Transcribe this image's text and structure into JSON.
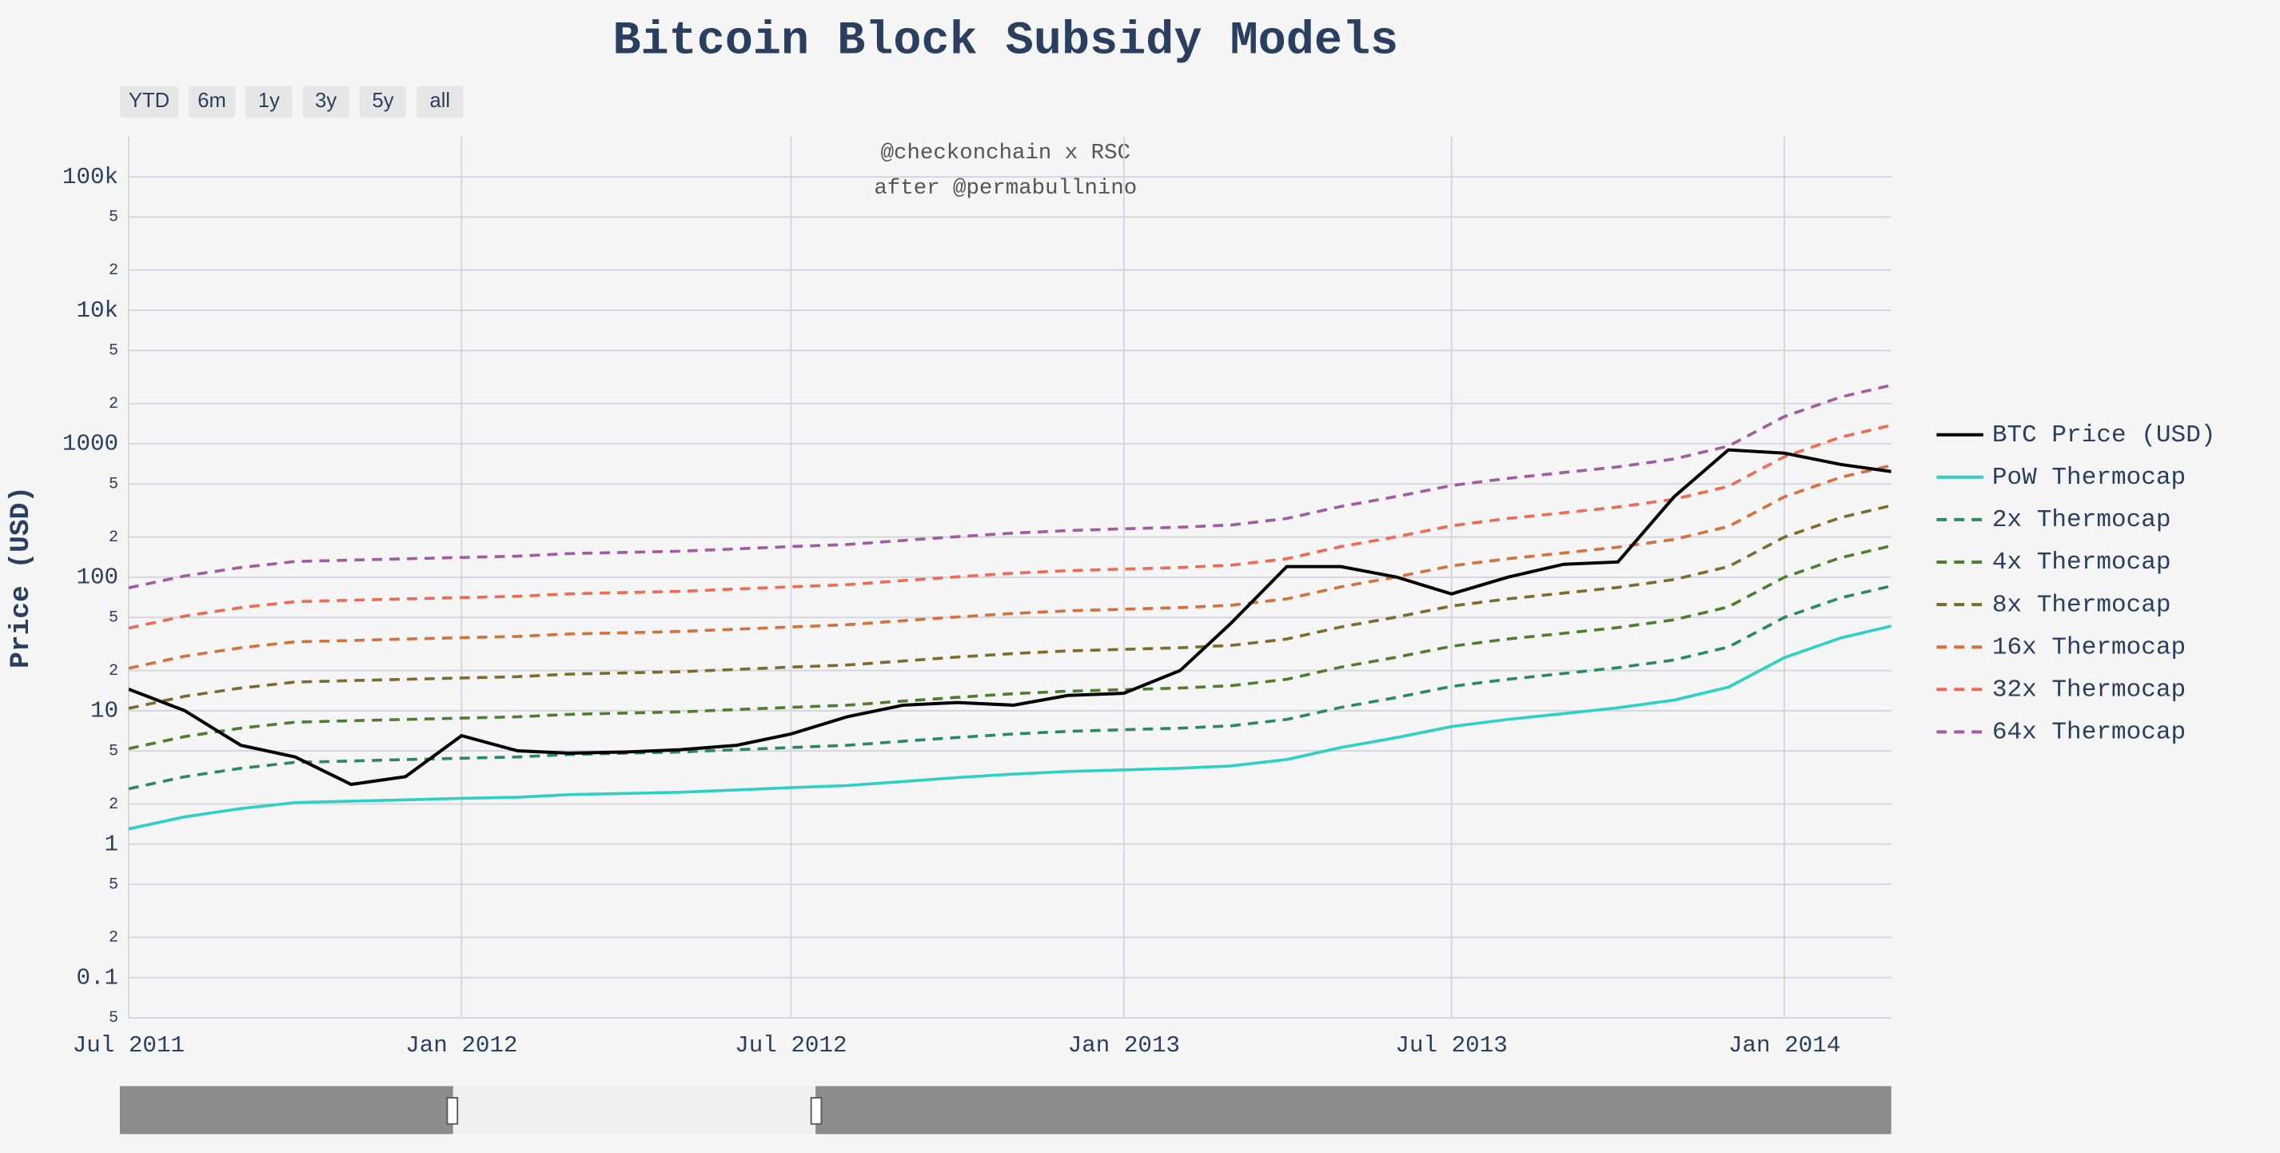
{
  "chart_data": {
    "type": "line",
    "title": "Bitcoin Block Subsidy Models",
    "annotations": [
      "@checkonchain x RSC",
      "after @permabullnino"
    ],
    "y_label": "Price (USD)",
    "range_buttons": [
      "YTD",
      "6m",
      "1y",
      "3y",
      "5y",
      "all"
    ],
    "log_y": true,
    "grid": true,
    "legend": "right",
    "x": [
      "2011-07",
      "2011-08",
      "2011-09",
      "2011-10",
      "2011-11",
      "2011-12",
      "2012-01",
      "2012-02",
      "2012-03",
      "2012-04",
      "2012-05",
      "2012-06",
      "2012-07",
      "2012-08",
      "2012-09",
      "2012-10",
      "2012-11",
      "2012-12",
      "2013-01",
      "2013-02",
      "2013-03",
      "2013-04",
      "2013-05",
      "2013-06",
      "2013-07",
      "2013-08",
      "2013-09",
      "2013-10",
      "2013-11",
      "2013-12",
      "2014-01",
      "2014-02",
      "2014-03"
    ],
    "xlim": [
      "2011-07",
      "2014-03"
    ],
    "xticks": [
      {
        "value": "2011-07",
        "label": "Jul 2011"
      },
      {
        "value": "2012-01",
        "label": "Jan 2012"
      },
      {
        "value": "2012-07",
        "label": "Jul 2012"
      },
      {
        "value": "2013-01",
        "label": "Jan 2013"
      },
      {
        "value": "2013-07",
        "label": "Jul 2013"
      },
      {
        "value": "2014-01",
        "label": "Jan 2014"
      }
    ],
    "ylim": [
      0.05,
      200000
    ],
    "yticks": [
      {
        "value": 0.05,
        "label": "5"
      },
      0.1,
      {
        "value": 0.2,
        "label": "2"
      },
      {
        "value": 0.5,
        "label": "5"
      },
      1,
      {
        "value": 2,
        "label": "2"
      },
      {
        "value": 5,
        "label": "5"
      },
      10,
      {
        "value": 20,
        "label": "2"
      },
      {
        "value": 50,
        "label": "5"
      },
      100,
      {
        "value": 200,
        "label": "2"
      },
      {
        "value": 500,
        "label": "5"
      },
      1000,
      {
        "value": 2000,
        "label": "2"
      },
      {
        "value": 5000,
        "label": "5"
      },
      {
        "value": 10000,
        "label": "10k"
      },
      {
        "value": 20000,
        "label": "2"
      },
      {
        "value": 50000,
        "label": "5"
      },
      {
        "value": 100000,
        "label": "100k"
      }
    ],
    "series": [
      {
        "name": "BTC Price (USD)",
        "color": "#000000",
        "dash": "solid",
        "values": [
          14.5,
          10,
          5.5,
          4.5,
          2.8,
          3.2,
          6.5,
          5,
          4.8,
          4.9,
          5.1,
          5.5,
          6.7,
          9,
          11,
          11.5,
          11,
          13,
          13.5,
          20,
          45,
          120,
          120,
          100,
          75,
          100,
          125,
          130,
          400,
          900,
          850,
          700,
          620
        ]
      },
      {
        "name": "PoW Thermocap",
        "color": "#2ecfc4",
        "dash": "solid",
        "values": [
          1.3,
          1.6,
          1.85,
          2.05,
          2.1,
          2.15,
          2.2,
          2.25,
          2.35,
          2.4,
          2.45,
          2.55,
          2.65,
          2.75,
          2.95,
          3.15,
          3.35,
          3.5,
          3.6,
          3.7,
          3.85,
          4.3,
          5.3,
          6.3,
          7.6,
          8.6,
          9.5,
          10.5,
          12,
          15,
          25,
          35,
          43
        ]
      },
      {
        "name": "2x Thermocap",
        "color": "#2a8a5e",
        "dash": "dash",
        "values": [
          2.6,
          3.2,
          3.7,
          4.1,
          4.2,
          4.3,
          4.4,
          4.5,
          4.7,
          4.8,
          4.9,
          5.1,
          5.3,
          5.5,
          5.9,
          6.3,
          6.7,
          7,
          7.2,
          7.4,
          7.7,
          8.6,
          10.6,
          12.6,
          15.2,
          17.2,
          19,
          21,
          24,
          30,
          50,
          70,
          86
        ]
      },
      {
        "name": "4x Thermocap",
        "color": "#4f7d2f",
        "dash": "dash",
        "values": [
          5.2,
          6.4,
          7.4,
          8.2,
          8.4,
          8.6,
          8.8,
          9,
          9.4,
          9.6,
          9.8,
          10.2,
          10.6,
          11,
          11.8,
          12.6,
          13.4,
          14,
          14.4,
          14.8,
          15.4,
          17.2,
          21.2,
          25.2,
          30.4,
          34.4,
          38,
          42,
          48,
          60,
          100,
          140,
          172
        ]
      },
      {
        "name": "8x Thermocap",
        "color": "#7d6a2c",
        "dash": "dash",
        "values": [
          10.4,
          12.8,
          14.8,
          16.4,
          16.8,
          17.2,
          17.6,
          18,
          18.8,
          19.2,
          19.6,
          20.4,
          21.2,
          22,
          23.6,
          25.2,
          26.8,
          28,
          28.8,
          29.6,
          30.8,
          34.4,
          42.4,
          50.4,
          60.8,
          68.8,
          76,
          84,
          96,
          120,
          200,
          280,
          344
        ]
      },
      {
        "name": "16x Thermocap",
        "color": "#d4703c",
        "dash": "dash",
        "values": [
          20.8,
          25.6,
          29.6,
          32.8,
          33.6,
          34.4,
          35.2,
          36,
          37.6,
          38.4,
          39.2,
          40.8,
          42.4,
          44,
          47.2,
          50.4,
          53.6,
          56,
          57.6,
          59.2,
          61.6,
          68.8,
          84.8,
          100.8,
          121.6,
          137.6,
          152,
          168,
          192,
          240,
          400,
          560,
          688
        ]
      },
      {
        "name": "32x Thermocap",
        "color": "#ef6a55",
        "dash": "dash",
        "values": [
          41.6,
          51.2,
          59.2,
          65.6,
          67.2,
          68.8,
          70.4,
          72,
          75.2,
          76.8,
          78.4,
          81.6,
          84.8,
          88,
          94.4,
          100.8,
          107.2,
          112,
          115.2,
          118.4,
          123.2,
          137.6,
          169.6,
          201.6,
          243.2,
          275.2,
          304,
          336,
          384,
          480,
          800,
          1120,
          1376
        ]
      },
      {
        "name": "64x Thermocap",
        "color": "#a05ca0",
        "dash": "dash",
        "values": [
          83.2,
          102.4,
          118.4,
          131.2,
          134.4,
          137.6,
          140.8,
          144,
          150.4,
          153.6,
          156.8,
          163.2,
          169.6,
          176,
          188.8,
          201.6,
          214.4,
          224,
          230.4,
          236.8,
          246.4,
          275.2,
          339.2,
          403.2,
          486.4,
          550.4,
          608,
          672,
          768,
          960,
          1600,
          2240,
          2752
        ]
      }
    ]
  }
}
